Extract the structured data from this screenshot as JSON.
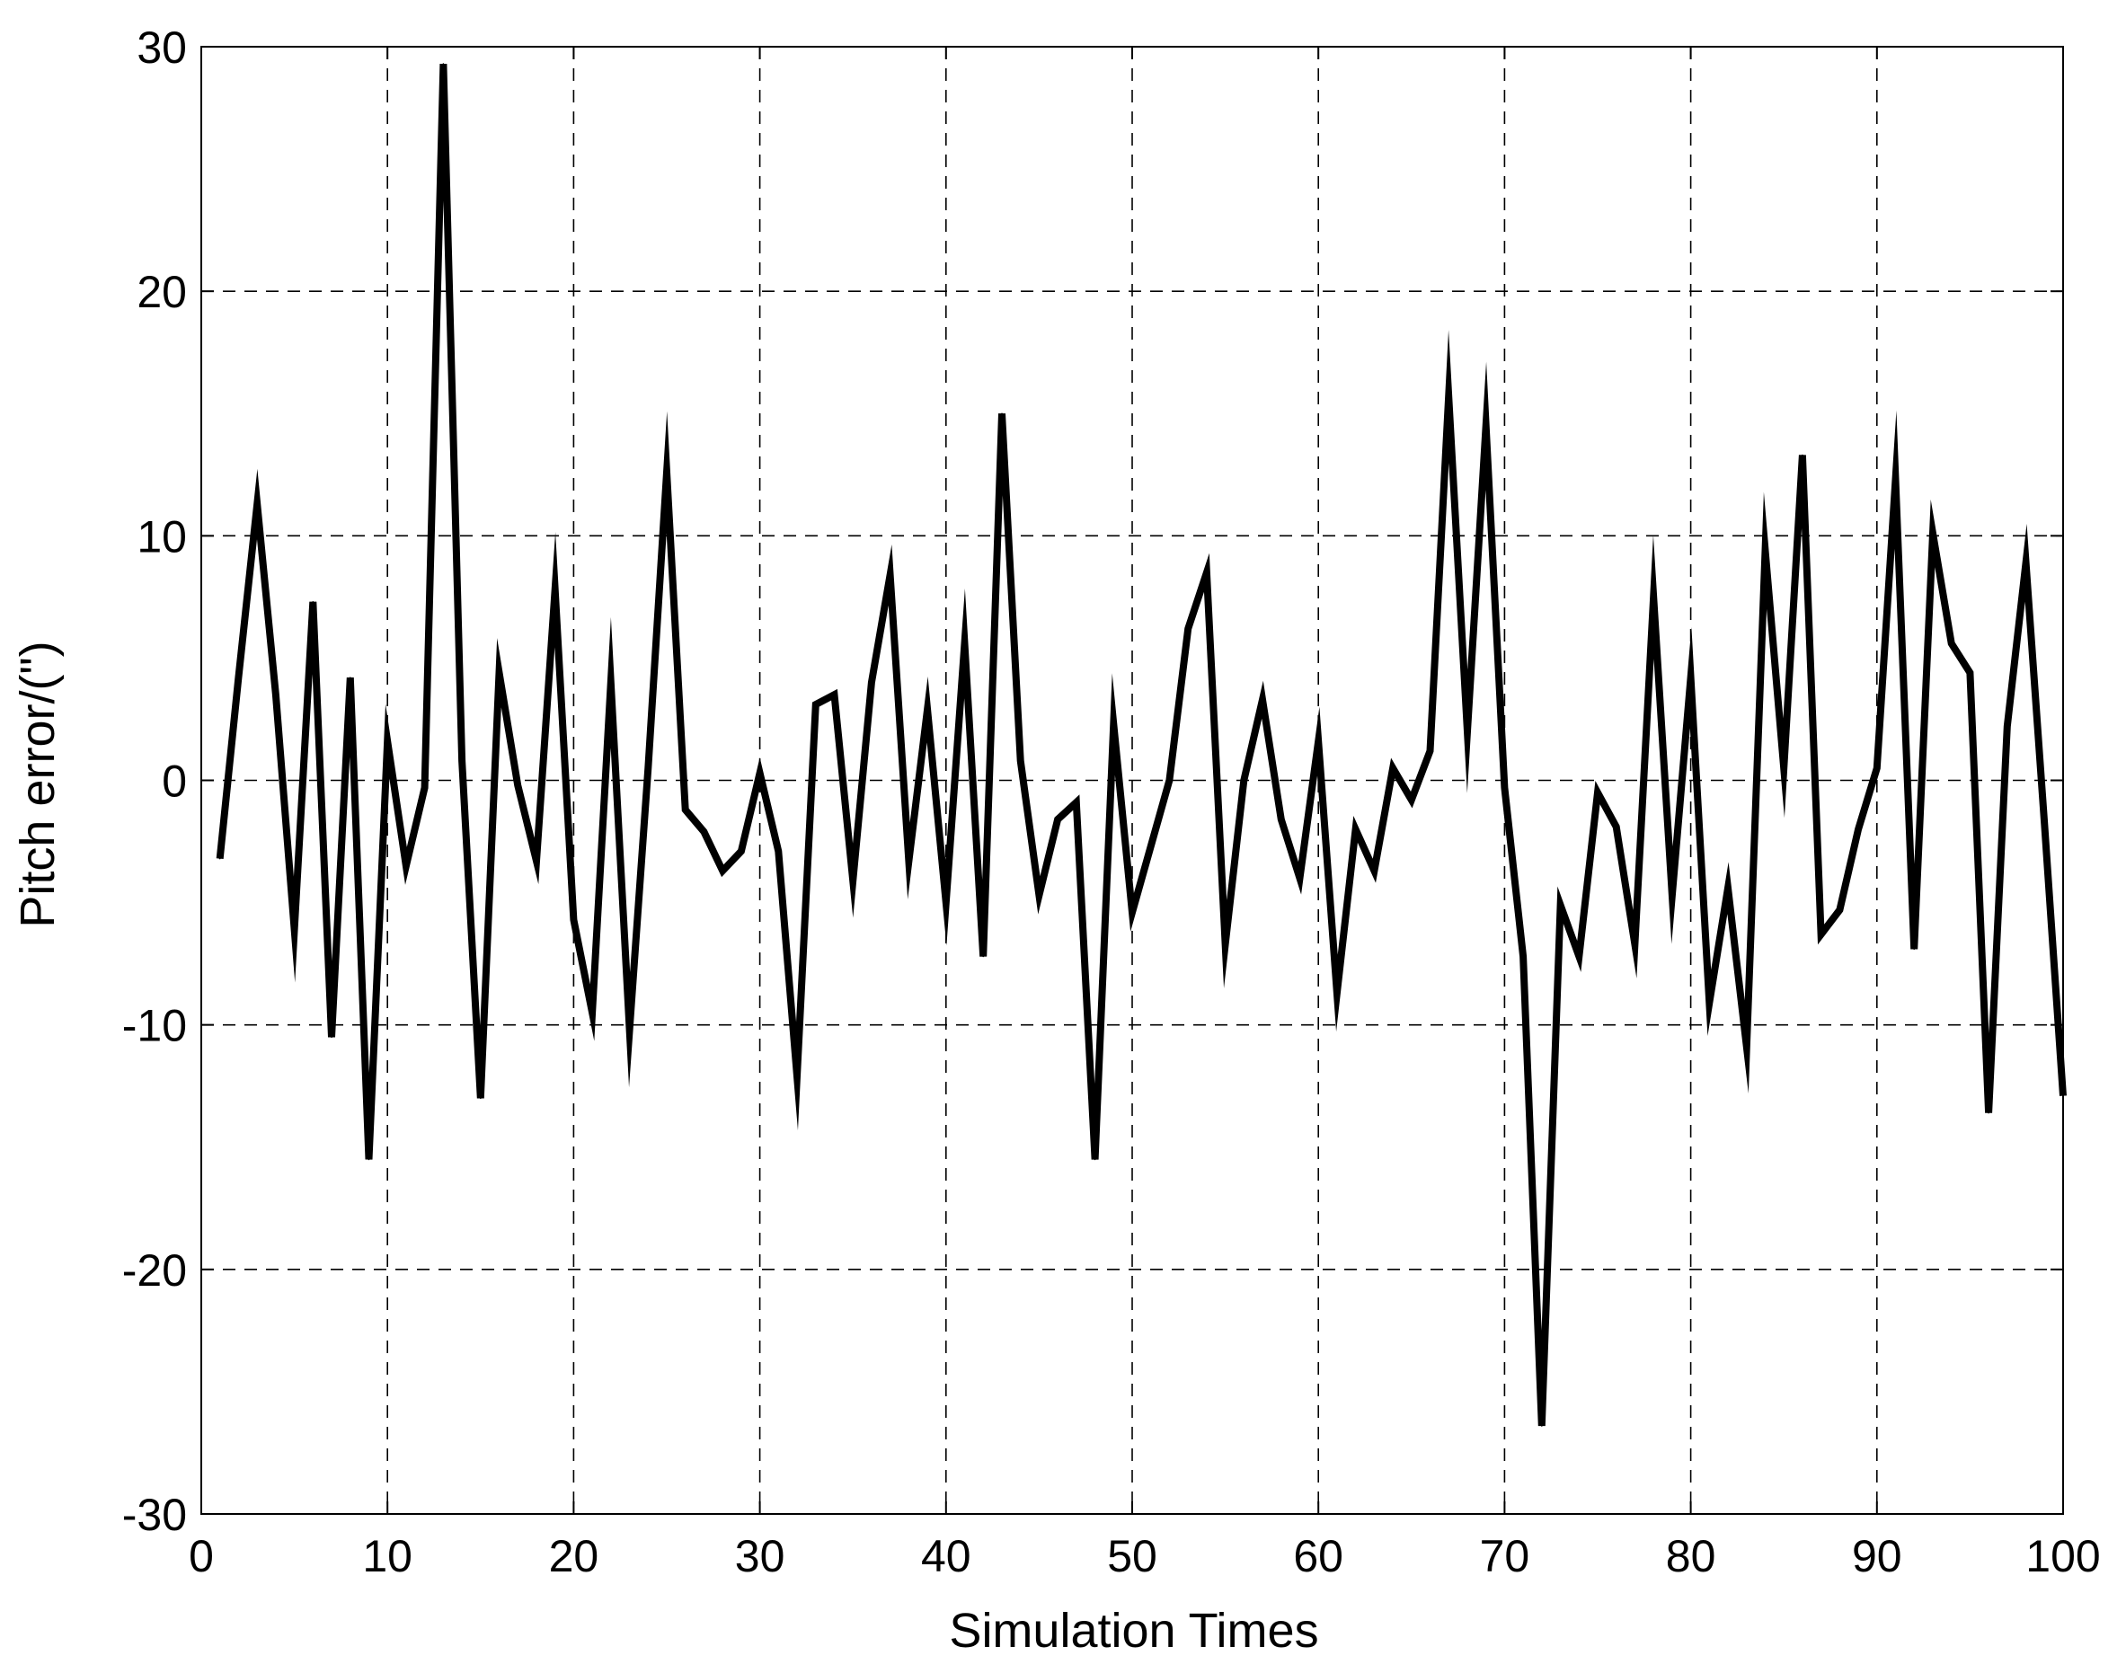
{
  "chart_data": {
    "type": "line",
    "title": "",
    "xlabel": "Simulation Times",
    "ylabel": "Pitch error/(\")",
    "xlim": [
      0,
      100
    ],
    "ylim": [
      -30,
      30
    ],
    "xticks": [
      0,
      10,
      20,
      30,
      40,
      50,
      60,
      70,
      80,
      90,
      100
    ],
    "yticks": [
      -30,
      -20,
      -10,
      0,
      10,
      20,
      30
    ],
    "xtick_labels": [
      "0",
      "10",
      "20",
      "30",
      "40",
      "50",
      "60",
      "70",
      "80",
      "90",
      "100"
    ],
    "ytick_labels": [
      "-30",
      "-20",
      "-10",
      "0",
      "10",
      "20",
      "30"
    ],
    "grid": true,
    "line_color": "#000000",
    "series": [
      {
        "x": [
          1,
          2,
          3,
          4,
          5,
          6,
          7,
          8,
          9,
          10,
          11,
          12,
          13,
          14,
          15,
          16,
          17,
          18,
          19,
          20,
          21,
          22,
          23,
          24,
          25,
          26,
          27,
          28,
          29,
          30,
          31,
          32,
          33,
          34,
          35,
          36,
          37,
          38,
          39,
          40,
          41,
          42,
          43,
          44,
          45,
          46,
          47,
          48,
          49,
          50,
          51,
          52,
          53,
          54,
          55,
          56,
          57,
          58,
          59,
          60,
          61,
          62,
          63,
          64,
          65,
          66,
          67,
          68,
          69,
          70,
          71,
          72,
          73,
          74,
          75,
          76,
          77,
          78,
          79,
          80,
          81,
          82,
          83,
          84,
          85,
          86,
          87,
          88,
          89,
          90,
          91,
          92,
          93,
          94,
          95,
          96,
          97,
          98,
          99,
          100
        ],
        "values": [
          -3.2,
          4.2,
          11.3,
          3.5,
          -6.1,
          7.3,
          -10.5,
          4.2,
          -15.5,
          1.6,
          -3.5,
          -0.3,
          29.3,
          0.8,
          -13.0,
          4.4,
          -0.2,
          -3.3,
          7.8,
          -5.7,
          -9.5,
          4.0,
          -10.2,
          0.5,
          12.6,
          -1.2,
          -2.1,
          -3.7,
          -2.9,
          0.3,
          -2.9,
          -12.1,
          3.1,
          3.5,
          -4.1,
          4.0,
          8.4,
          -3.3,
          2.9,
          -5.0,
          5.6,
          -7.2,
          15.0,
          0.8,
          -4.7,
          -1.6,
          -0.9,
          -15.5,
          2.3,
          -5.4,
          -2.7,
          0.0,
          6.2,
          8.5,
          -6.7,
          0.0,
          3.3,
          -1.6,
          -4.0,
          1.6,
          -8.7,
          -2.0,
          -3.7,
          0.5,
          -0.8,
          1.2,
          15.7,
          2.0,
          14.5,
          -0.3,
          -7.2,
          -26.4,
          -5.1,
          -7.2,
          -0.5,
          -1.9,
          -6.7,
          7.5,
          -4.7,
          4.2,
          -9.1,
          -4.4,
          -10.9,
          9.4,
          0.5,
          13.3,
          -6.3,
          -5.3,
          -2.0,
          0.5,
          12.3,
          -6.9,
          10.1,
          5.6,
          4.4,
          -13.6,
          2.2,
          8.9,
          -1.8,
          -12.9
        ]
      }
    ]
  }
}
